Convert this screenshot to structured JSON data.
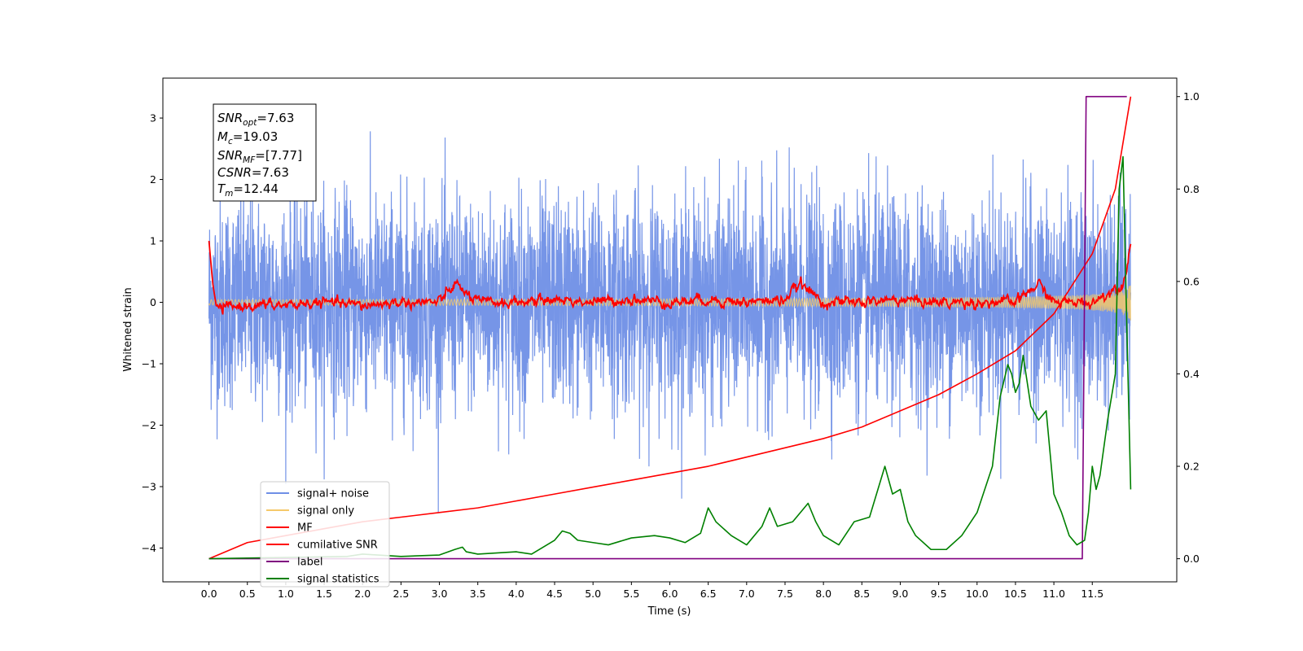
{
  "chart_data": {
    "type": "line",
    "xlabel": "Time (s)",
    "ylabel": "Whitened strain",
    "xlim": [
      -0.6,
      12.6
    ],
    "ylim": [
      -4.55,
      3.65
    ],
    "y2lim": [
      -0.05,
      1.04
    ],
    "x_ticks": [
      "0.0",
      "0.5",
      "1.0",
      "1.5",
      "2.0",
      "2.5",
      "3.0",
      "3.5",
      "4.0",
      "4.5",
      "5.0",
      "5.5",
      "6.0",
      "6.5",
      "7.0",
      "7.5",
      "8.0",
      "8.5",
      "9.0",
      "9.5",
      "10.0",
      "10.5",
      "11.0",
      "11.5"
    ],
    "y_ticks": [
      "3",
      "2",
      "1",
      "0",
      "−1",
      "−2",
      "−3",
      "−4"
    ],
    "y2_ticks": [
      "1.0",
      "0.8",
      "0.6",
      "0.4",
      "0.2",
      "0.0"
    ],
    "grid": false,
    "legend_position": "lower-left",
    "info_box": {
      "snr_opt": {
        "main": "SNR",
        "sub": "opt",
        "value": "=7.63"
      },
      "mc": {
        "main": "M",
        "sub": "c",
        "value": "=19.03"
      },
      "snr_mf": {
        "main": "SNR",
        "sub": "MF",
        "value": "=[7.77]"
      },
      "csnr": {
        "main": "CSNR",
        "sub": "",
        "value": "=7.63"
      },
      "tm": {
        "main": "T",
        "sub": "m",
        "value": "=12.44"
      }
    },
    "series": [
      {
        "name": "signal+ noise",
        "color": "#6f8fe6",
        "axis": "left",
        "kind": "noise",
        "amplitude": 1.0,
        "x_range": [
          0.0,
          12.0
        ]
      },
      {
        "name": "signal only",
        "color": "#f5c96a",
        "axis": "left",
        "kind": "chirp",
        "x_range": [
          0.0,
          12.0
        ]
      },
      {
        "name": "MF",
        "color": "#ff0000",
        "axis": "left",
        "x": [
          0.0,
          0.05,
          0.1,
          0.5,
          1.0,
          1.5,
          2.0,
          2.5,
          3.0,
          3.2,
          3.5,
          4.0,
          4.5,
          5.0,
          5.5,
          6.0,
          6.5,
          7.0,
          7.5,
          7.7,
          8.0,
          8.5,
          9.0,
          9.5,
          10.0,
          10.5,
          10.8,
          11.0,
          11.5,
          11.9,
          12.0
        ],
        "y": [
          1.0,
          0.3,
          -0.1,
          -0.05,
          -0.05,
          0.0,
          -0.05,
          0.0,
          0.0,
          0.3,
          0.0,
          0.0,
          0.05,
          0.0,
          0.05,
          0.0,
          0.05,
          0.0,
          0.05,
          0.3,
          0.0,
          0.0,
          0.05,
          0.0,
          0.0,
          0.0,
          0.3,
          0.0,
          0.0,
          0.3,
          0.95
        ]
      },
      {
        "name": "cumilative SNR",
        "color": "#ff0000",
        "axis": "right",
        "x": [
          0.0,
          0.5,
          1.0,
          1.5,
          2.0,
          2.5,
          3.0,
          3.5,
          4.0,
          4.5,
          5.0,
          5.5,
          6.0,
          6.5,
          7.0,
          7.5,
          8.0,
          8.5,
          9.0,
          9.5,
          10.0,
          10.5,
          11.0,
          11.5,
          11.8,
          12.0
        ],
        "y": [
          0.0,
          0.035,
          0.05,
          0.065,
          0.08,
          0.09,
          0.1,
          0.11,
          0.125,
          0.14,
          0.155,
          0.17,
          0.185,
          0.2,
          0.22,
          0.24,
          0.26,
          0.285,
          0.32,
          0.355,
          0.4,
          0.45,
          0.53,
          0.66,
          0.8,
          1.0
        ]
      },
      {
        "name": "label",
        "color": "#800080",
        "axis": "right",
        "x": [
          0.0,
          11.37,
          11.42,
          11.43,
          11.95
        ],
        "y": [
          0.0,
          0.0,
          1.0,
          1.0,
          1.0
        ]
      },
      {
        "name": "signal statistics",
        "color": "#008000",
        "axis": "right",
        "x": [
          0.0,
          1.8,
          2.0,
          2.2,
          2.5,
          3.0,
          3.2,
          3.3,
          3.35,
          3.5,
          4.0,
          4.2,
          4.5,
          4.6,
          4.7,
          4.8,
          5.0,
          5.2,
          5.5,
          5.8,
          6.0,
          6.2,
          6.4,
          6.5,
          6.6,
          6.8,
          7.0,
          7.2,
          7.3,
          7.4,
          7.6,
          7.8,
          7.9,
          8.0,
          8.2,
          8.4,
          8.6,
          8.8,
          8.9,
          9.0,
          9.1,
          9.2,
          9.4,
          9.6,
          9.8,
          10.0,
          10.2,
          10.3,
          10.4,
          10.45,
          10.5,
          10.55,
          10.6,
          10.7,
          10.8,
          10.9,
          11.0,
          11.1,
          11.2,
          11.3,
          11.4,
          11.45,
          11.5,
          11.55,
          11.6,
          11.7,
          11.8,
          11.85,
          11.9,
          11.95,
          12.0
        ],
        "y": [
          0.0,
          0.005,
          0.01,
          0.008,
          0.005,
          0.008,
          0.02,
          0.025,
          0.015,
          0.01,
          0.015,
          0.01,
          0.04,
          0.06,
          0.055,
          0.04,
          0.035,
          0.03,
          0.045,
          0.05,
          0.045,
          0.035,
          0.055,
          0.11,
          0.08,
          0.05,
          0.03,
          0.07,
          0.11,
          0.07,
          0.08,
          0.12,
          0.08,
          0.05,
          0.03,
          0.08,
          0.09,
          0.2,
          0.14,
          0.15,
          0.08,
          0.05,
          0.02,
          0.02,
          0.05,
          0.1,
          0.2,
          0.35,
          0.42,
          0.4,
          0.36,
          0.38,
          0.44,
          0.33,
          0.3,
          0.32,
          0.14,
          0.1,
          0.05,
          0.03,
          0.04,
          0.1,
          0.2,
          0.15,
          0.18,
          0.3,
          0.4,
          0.8,
          0.87,
          0.5,
          0.15
        ]
      }
    ]
  }
}
